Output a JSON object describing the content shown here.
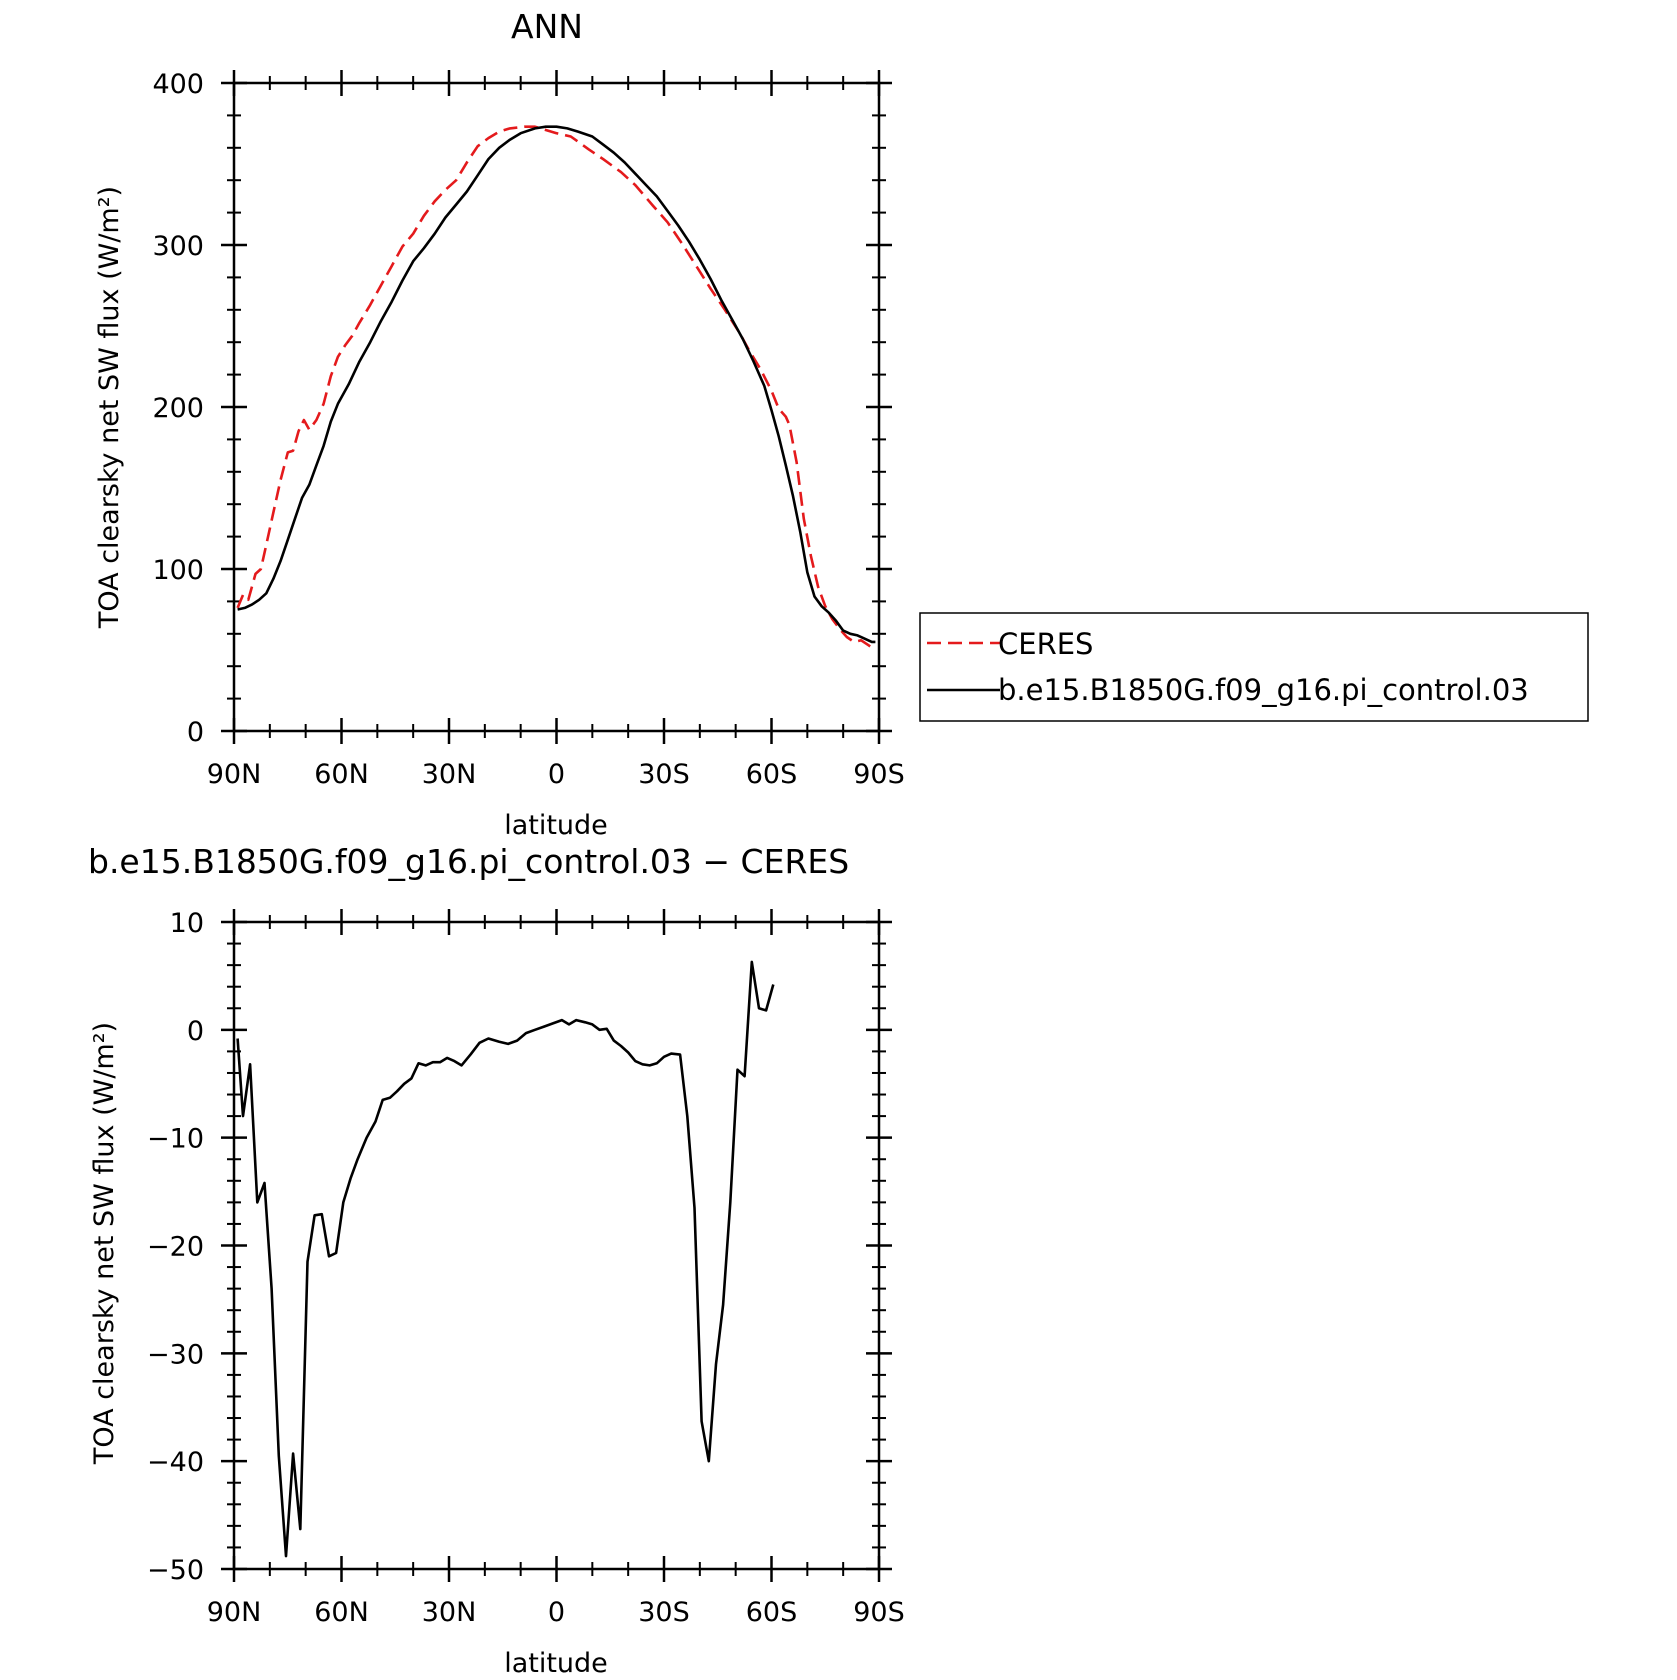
{
  "chart_data": [
    {
      "type": "line",
      "title": "ANN",
      "xlabel": "latitude",
      "ylabel": "TOA clearsky net SW flux (W/m²)",
      "xlim": [
        90,
        -90
      ],
      "ylim": [
        0,
        400
      ],
      "xticks": [
        {
          "value": 90,
          "label": "90N"
        },
        {
          "value": 60,
          "label": "60N"
        },
        {
          "value": 30,
          "label": "30N"
        },
        {
          "value": 0,
          "label": "0"
        },
        {
          "value": -30,
          "label": "30S"
        },
        {
          "value": -60,
          "label": "60S"
        },
        {
          "value": -90,
          "label": "90S"
        }
      ],
      "yticks": [
        {
          "value": 0,
          "label": "0"
        },
        {
          "value": 100,
          "label": "100"
        },
        {
          "value": 200,
          "label": "200"
        },
        {
          "value": 300,
          "label": "300"
        },
        {
          "value": 400,
          "label": "400"
        }
      ],
      "grid": false,
      "legend_position": "right",
      "series": [
        {
          "name": "CERES",
          "color": "#e41a1c",
          "dash": true,
          "points": [
            [
              89,
              76
            ],
            [
              87.5,
              84
            ],
            [
              86,
              81
            ],
            [
              84,
              97
            ],
            [
              82.5,
              100
            ],
            [
              81,
              115
            ],
            [
              79,
              135
            ],
            [
              77,
              155
            ],
            [
              75,
              172
            ],
            [
              73.5,
              173
            ],
            [
              72,
              185
            ],
            [
              70.5,
              192
            ],
            [
              69,
              186
            ],
            [
              67,
              192
            ],
            [
              65,
              202
            ],
            [
              63,
              219
            ],
            [
              61,
              231
            ],
            [
              59,
              238
            ],
            [
              57,
              244
            ],
            [
              55,
              252
            ],
            [
              52,
              263
            ],
            [
              49,
              275
            ],
            [
              46,
              287
            ],
            [
              43,
              299
            ],
            [
              40,
              307
            ],
            [
              37,
              318
            ],
            [
              34,
              327
            ],
            [
              31,
              334
            ],
            [
              28,
              340
            ],
            [
              25,
              351
            ],
            [
              22,
              361
            ],
            [
              19,
              366
            ],
            [
              16,
              370
            ],
            [
              13,
              372
            ],
            [
              9,
              373
            ],
            [
              6,
              373
            ],
            [
              3,
              371
            ],
            [
              0,
              369
            ],
            [
              -4,
              367
            ],
            [
              -9,
              359
            ],
            [
              -13,
              353
            ],
            [
              -18,
              345
            ],
            [
              -22,
              337
            ],
            [
              -27,
              324
            ],
            [
              -31,
              314
            ],
            [
              -35,
              301
            ],
            [
              -39,
              287
            ],
            [
              -43,
              273
            ],
            [
              -47,
              260
            ],
            [
              -51,
              246
            ],
            [
              -54,
              234
            ],
            [
              -57,
              223
            ],
            [
              -60,
              210
            ],
            [
              -62,
              199
            ],
            [
              -64,
              194
            ],
            [
              -65,
              189
            ],
            [
              -67,
              166
            ],
            [
              -69,
              131
            ],
            [
              -71,
              108
            ],
            [
              -73,
              89
            ],
            [
              -75,
              77
            ],
            [
              -77,
              69
            ],
            [
              -79,
              63
            ],
            [
              -81,
              58
            ],
            [
              -83,
              55
            ],
            [
              -85,
              56
            ],
            [
              -87,
              53
            ],
            [
              -89,
              50
            ]
          ]
        },
        {
          "name": "b.e15.B1850G.f09_g16.pi_control.03",
          "color": "#000000",
          "dash": false,
          "points": [
            [
              89,
              75
            ],
            [
              87,
              76
            ],
            [
              85,
              78
            ],
            [
              83,
              81
            ],
            [
              81,
              85
            ],
            [
              79,
              94
            ],
            [
              77,
              105
            ],
            [
              75,
              118
            ],
            [
              73,
              131
            ],
            [
              71,
              144
            ],
            [
              69,
              152
            ],
            [
              67,
              164
            ],
            [
              65,
              176
            ],
            [
              63,
              191
            ],
            [
              61,
              202
            ],
            [
              58,
              214
            ],
            [
              55,
              228
            ],
            [
              52,
              240
            ],
            [
              49,
              253
            ],
            [
              46,
              265
            ],
            [
              43,
              278
            ],
            [
              40,
              290
            ],
            [
              37,
              298
            ],
            [
              34,
              307
            ],
            [
              31,
              317
            ],
            [
              28,
              325
            ],
            [
              25,
              333
            ],
            [
              22,
              343
            ],
            [
              19,
              353
            ],
            [
              16,
              360
            ],
            [
              13,
              365
            ],
            [
              10,
              369
            ],
            [
              6,
              372
            ],
            [
              3,
              373
            ],
            [
              0,
              373
            ],
            [
              -3,
              372
            ],
            [
              -6,
              370
            ],
            [
              -10,
              367
            ],
            [
              -13,
              362
            ],
            [
              -16,
              357
            ],
            [
              -19,
              351
            ],
            [
              -22,
              344
            ],
            [
              -25,
              337
            ],
            [
              -28,
              330
            ],
            [
              -31,
              321
            ],
            [
              -34,
              312
            ],
            [
              -37,
              302
            ],
            [
              -40,
              291
            ],
            [
              -43,
              279
            ],
            [
              -46,
              266
            ],
            [
              -49,
              254
            ],
            [
              -52,
              242
            ],
            [
              -55,
              228
            ],
            [
              -58,
              213
            ],
            [
              -60,
              198
            ],
            [
              -62,
              182
            ],
            [
              -64,
              164
            ],
            [
              -66,
              145
            ],
            [
              -68,
              123
            ],
            [
              -70,
              98
            ],
            [
              -72,
              83
            ],
            [
              -74,
              77
            ],
            [
              -76,
              73
            ],
            [
              -78,
              68
            ],
            [
              -80,
              62
            ],
            [
              -82,
              60
            ],
            [
              -84,
              59
            ],
            [
              -86,
              57
            ],
            [
              -88,
              55
            ],
            [
              -89,
              55
            ]
          ]
        }
      ]
    },
    {
      "type": "line",
      "title": "b.e15.B1850G.f09_g16.pi_control.03 − CERES",
      "xlabel": "latitude",
      "ylabel": "TOA clearsky net SW flux (W/m²)",
      "xlim": [
        90,
        -90
      ],
      "ylim": [
        -50,
        10
      ],
      "xticks": [
        {
          "value": 90,
          "label": "90N"
        },
        {
          "value": 60,
          "label": "60N"
        },
        {
          "value": 30,
          "label": "30N"
        },
        {
          "value": 0,
          "label": "0"
        },
        {
          "value": -30,
          "label": "30S"
        },
        {
          "value": -60,
          "label": "60S"
        },
        {
          "value": -90,
          "label": "90S"
        }
      ],
      "yticks": [
        {
          "value": 10,
          "label": "10"
        },
        {
          "value": 0,
          "label": "0"
        },
        {
          "value": -10,
          "label": "−10"
        },
        {
          "value": -20,
          "label": "−20"
        },
        {
          "value": -30,
          "label": "−30"
        },
        {
          "value": -40,
          "label": "−40"
        },
        {
          "value": -50,
          "label": "−50"
        }
      ],
      "grid": false,
      "series": [
        {
          "color": "#000000",
          "dash": false,
          "points": [
            [
              89,
              -0.8
            ],
            [
              87.5,
              -8
            ],
            [
              85.5,
              -3.2
            ],
            [
              83.5,
              -16
            ],
            [
              81.5,
              -14.2
            ],
            [
              79.5,
              -24
            ],
            [
              77.5,
              -39.5
            ],
            [
              75.5,
              -48.8
            ],
            [
              73.5,
              -39.3
            ],
            [
              71.5,
              -46.3
            ],
            [
              69.5,
              -21.5
            ],
            [
              67.5,
              -17.2
            ],
            [
              65.5,
              -17.1
            ],
            [
              63.5,
              -21
            ],
            [
              61.5,
              -20.7
            ],
            [
              59.5,
              -16
            ],
            [
              57.5,
              -13.8
            ],
            [
              55.5,
              -12
            ],
            [
              53,
              -10
            ],
            [
              50.5,
              -8.5
            ],
            [
              48.5,
              -6.5
            ],
            [
              46.5,
              -6.3
            ],
            [
              44.5,
              -5.7
            ],
            [
              42.5,
              -5
            ],
            [
              40.5,
              -4.5
            ],
            [
              38.5,
              -3.1
            ],
            [
              36.5,
              -3.3
            ],
            [
              34.5,
              -3
            ],
            [
              32.5,
              -3
            ],
            [
              30.5,
              -2.6
            ],
            [
              28.5,
              -2.9
            ],
            [
              26.5,
              -3.3
            ],
            [
              24,
              -2.3
            ],
            [
              21.5,
              -1.2
            ],
            [
              19,
              -0.8
            ],
            [
              16,
              -1.1
            ],
            [
              13.5,
              -1.3
            ],
            [
              11,
              -1
            ],
            [
              8.5,
              -0.3
            ],
            [
              6,
              0
            ],
            [
              3.5,
              0.3
            ],
            [
              1,
              0.6
            ],
            [
              -1.5,
              0.9
            ],
            [
              -3.5,
              0.5
            ],
            [
              -5.5,
              0.9
            ],
            [
              -8,
              0.7
            ],
            [
              -10,
              0.5
            ],
            [
              -12,
              0
            ],
            [
              -14,
              0.1
            ],
            [
              -16,
              -1
            ],
            [
              -18,
              -1.5
            ],
            [
              -20,
              -2.1
            ],
            [
              -22,
              -2.9
            ],
            [
              -24,
              -3.2
            ],
            [
              -26,
              -3.3
            ],
            [
              -28,
              -3.1
            ],
            [
              -30,
              -2.5
            ],
            [
              -32,
              -2.2
            ],
            [
              -34.5,
              -2.3
            ],
            [
              -36.5,
              -8
            ],
            [
              -38.5,
              -16.5
            ],
            [
              -40.5,
              -36.3
            ],
            [
              -42.5,
              -40
            ],
            [
              -44.5,
              -31
            ],
            [
              -46.5,
              -25.5
            ],
            [
              -48.5,
              -16
            ],
            [
              -50.5,
              -3.7
            ],
            [
              -52.5,
              -4.3
            ],
            [
              -54.5,
              6.3
            ],
            [
              -56.5,
              2
            ],
            [
              -58.5,
              1.8
            ],
            [
              -60.5,
              4.2
            ]
          ]
        }
      ]
    }
  ]
}
